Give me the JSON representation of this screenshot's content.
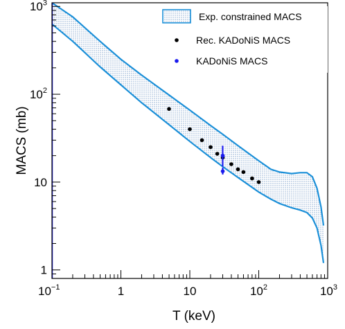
{
  "chart_data": {
    "type": "scatter",
    "xlabel": "T (keV)",
    "ylabel": "MACS (mb)",
    "xscale": "log",
    "yscale": "log",
    "xlim": [
      0.1,
      1000
    ],
    "ylim": [
      0.8,
      1100
    ],
    "x_ticks": [
      {
        "value": 0.1,
        "base": "10",
        "exp": "−1"
      },
      {
        "value": 1,
        "base": "1",
        "exp": ""
      },
      {
        "value": 10,
        "base": "10",
        "exp": ""
      },
      {
        "value": 100,
        "base": "10",
        "exp": "2"
      },
      {
        "value": 1000,
        "base": "10",
        "exp": "3"
      }
    ],
    "y_ticks": [
      {
        "value": 1,
        "base": "1",
        "exp": ""
      },
      {
        "value": 10,
        "base": "10",
        "exp": ""
      },
      {
        "value": 100,
        "base": "10",
        "exp": "2"
      },
      {
        "value": 1000,
        "base": "10",
        "exp": "3"
      }
    ],
    "legend_position": "top-right",
    "grid": false,
    "band": {
      "name": "Exp. constrained MACS",
      "color": "#1a8fd8",
      "x": [
        0.1,
        0.2,
        0.5,
        1,
        2,
        5,
        10,
        20,
        30,
        50,
        100,
        150,
        200,
        300,
        400,
        500,
        600,
        700,
        800,
        870
      ],
      "upper": [
        1100,
        760,
        400,
        250,
        165,
        98,
        66,
        44,
        35,
        26,
        17.5,
        14,
        13,
        12.5,
        12.8,
        12.8,
        11.5,
        8.5,
        5.2,
        3.2
      ],
      "lower": [
        630,
        400,
        205,
        128,
        80,
        45,
        29,
        19,
        15,
        11.3,
        7.7,
        6.4,
        5.7,
        5.1,
        4.8,
        4.5,
        3.9,
        3.0,
        1.9,
        1.2
      ]
    },
    "series": [
      {
        "name": "Rec. KADoNiS MACS",
        "color": "#000000",
        "x": [
          5,
          10,
          15,
          20,
          25,
          30,
          40,
          50,
          60,
          80,
          100
        ],
        "y": [
          68,
          40,
          30,
          25,
          21,
          19,
          16,
          14,
          13,
          11,
          10
        ]
      },
      {
        "name": "KADoNiS MACS",
        "color": "#1a1aee",
        "x": [
          30,
          30
        ],
        "y": [
          20,
          13.3
        ],
        "y_err_low": [
          15,
          12.2
        ],
        "y_err_high": [
          26,
          14.6
        ]
      }
    ]
  }
}
